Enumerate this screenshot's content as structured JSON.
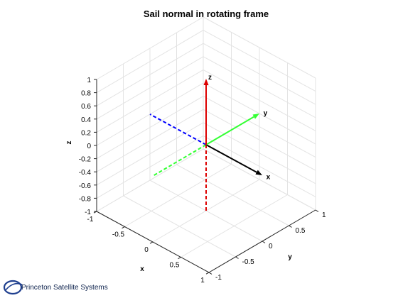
{
  "chart_data": {
    "type": "line",
    "title": "Sail normal in rotating frame",
    "xlabel": "x",
    "ylabel": "y",
    "zlabel": "z",
    "xlim": [
      -1,
      1
    ],
    "ylim": [
      -1,
      1
    ],
    "zlim": [
      -1,
      1
    ],
    "grid": true,
    "ticks": {
      "x": [
        "-1",
        "-0.5",
        "0",
        "0.5",
        "1"
      ],
      "y": [
        "-1",
        "-0.5",
        "0",
        "0.5",
        "1"
      ],
      "z": [
        "-1",
        "-0.8",
        "-0.6",
        "-0.4",
        "-0.2",
        "0",
        "0.2",
        "0.4",
        "0.6",
        "0.8",
        "1"
      ]
    },
    "x_tick_values": [
      -1,
      -0.5,
      0,
      0.5,
      1
    ],
    "y_tick_values": [
      -1,
      -0.5,
      0,
      0.5,
      1
    ],
    "z_tick_values": [
      -1,
      -0.8,
      -0.6,
      -0.4,
      -0.2,
      0,
      0.2,
      0.4,
      0.6,
      0.8,
      1
    ],
    "series": [
      {
        "label": "x",
        "color": "#000000",
        "style": "arrow",
        "from": [
          0,
          0,
          0
        ],
        "to": [
          1,
          0,
          0
        ]
      },
      {
        "label": "y",
        "color": "#33ff33",
        "style": "arrow",
        "from": [
          0,
          0,
          0
        ],
        "to": [
          0,
          1,
          0
        ]
      },
      {
        "label": "z",
        "color": "#dd0000",
        "style": "arrow",
        "from": [
          0,
          0,
          0
        ],
        "to": [
          0,
          0,
          1
        ]
      },
      {
        "label": "",
        "color": "#0000ff",
        "style": "dashed",
        "from": [
          0,
          0,
          0
        ],
        "to": [
          -1,
          0,
          0
        ]
      },
      {
        "label": "",
        "color": "#33ff33",
        "style": "dashed",
        "from": [
          0,
          0,
          0
        ],
        "to": [
          0,
          -1,
          0
        ]
      },
      {
        "label": "",
        "color": "#dd0000",
        "style": "dashed",
        "from": [
          0,
          0,
          0
        ],
        "to": [
          0,
          0,
          -1
        ]
      }
    ]
  },
  "branding": {
    "text": "Princeton Satellite Systems",
    "logo_color": "#1f3f8f"
  }
}
